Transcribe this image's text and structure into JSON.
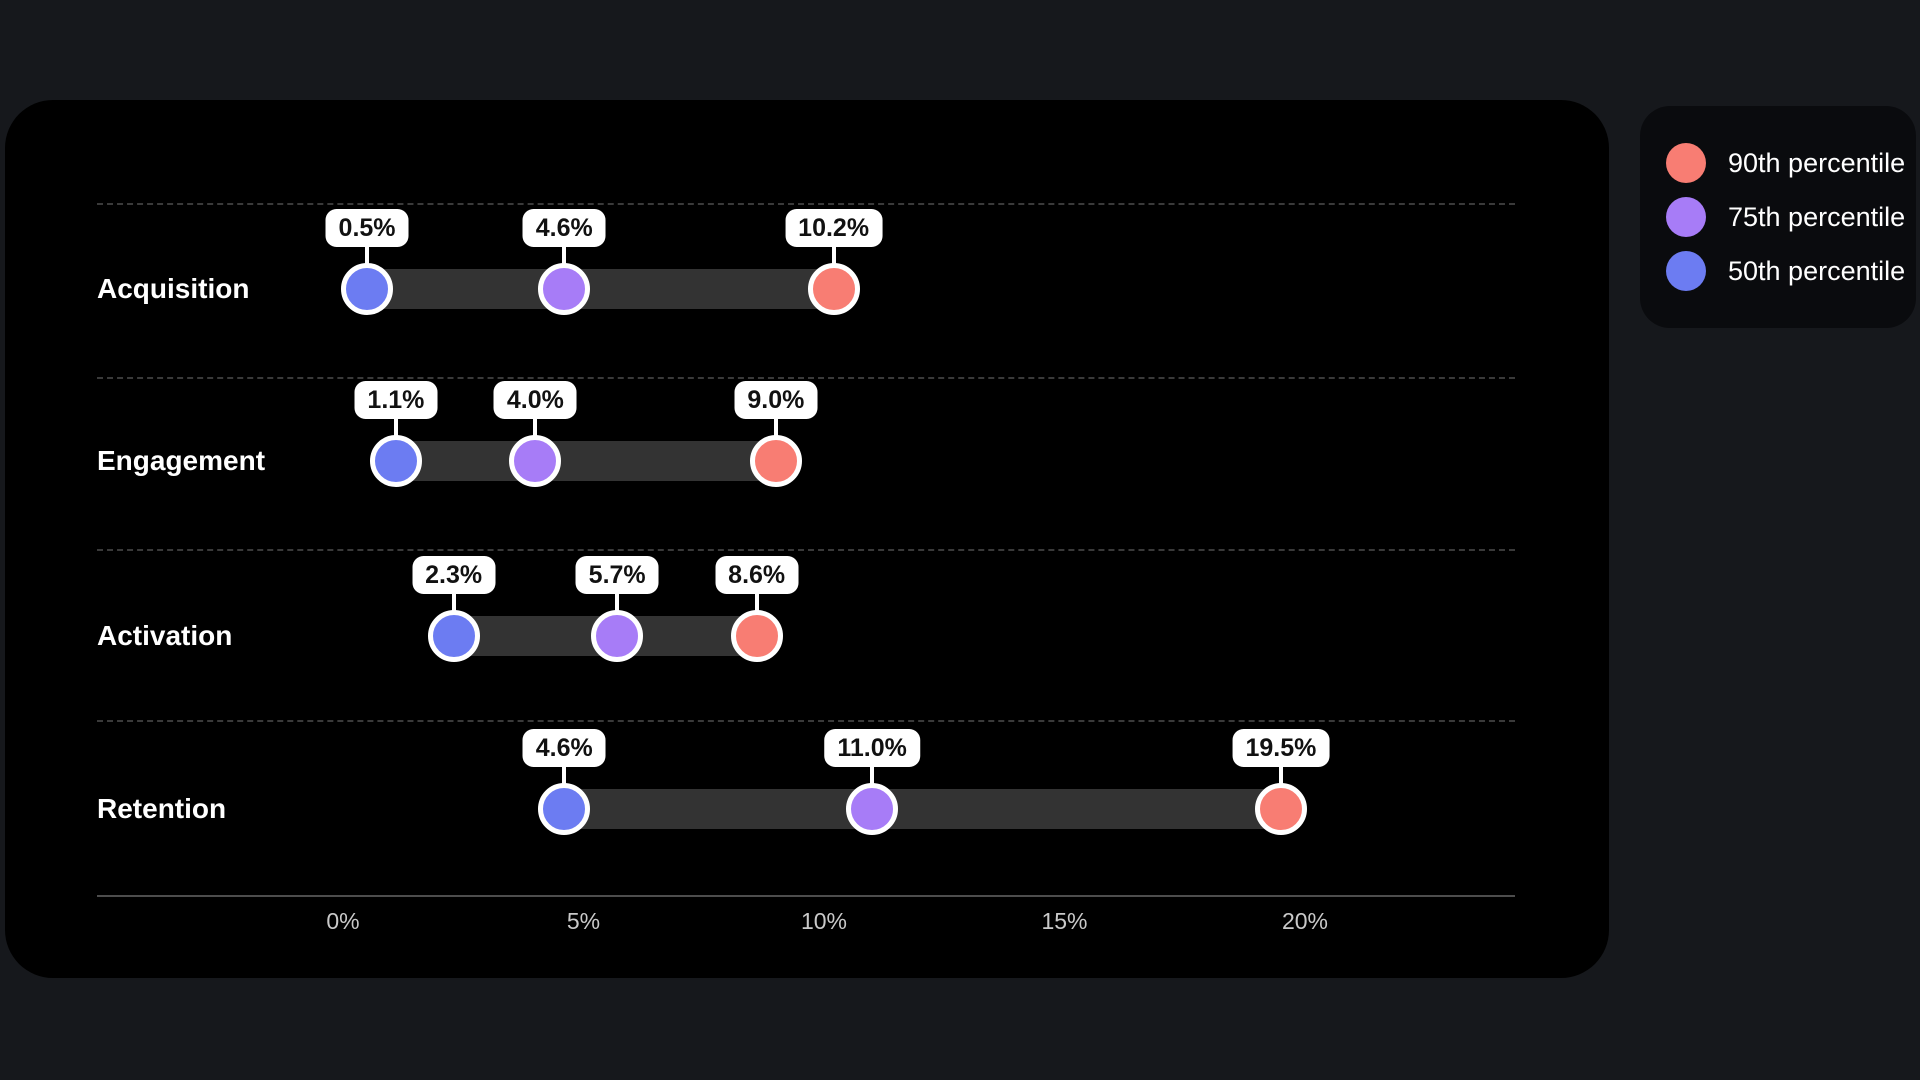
{
  "colors": {
    "page_bg": "#16181c",
    "card_bg": "#000000",
    "legend_bg": "#0a0b0e",
    "bar_track": "#333333",
    "separator": "#3a3a3a",
    "axis_line": "#4d4d4d",
    "tick_text": "#c9c9c9",
    "badge_bg": "#ffffff",
    "badge_text": "#111111",
    "blue_50th": "#6c7cf2",
    "purple_75th": "#a77cf7",
    "red_90th": "#f87d73"
  },
  "chart_data": {
    "type": "dumbbell",
    "title": "",
    "categories": [
      "Acquisition",
      "Engagement",
      "Activation",
      "Retention"
    ],
    "series": [
      {
        "name": "50th percentile",
        "color": "#6c7cf2",
        "values": [
          0.5,
          1.1,
          2.3,
          4.6
        ],
        "labels": [
          "0.5%",
          "1.1%",
          "2.3%",
          "4.6%"
        ]
      },
      {
        "name": "75th percentile",
        "color": "#a77cf7",
        "values": [
          4.6,
          4.0,
          5.7,
          11.0
        ],
        "labels": [
          "4.6%",
          "4.0%",
          "5.7%",
          "11.0%"
        ]
      },
      {
        "name": "90th percentile",
        "color": "#f87d73",
        "values": [
          10.2,
          9.0,
          8.6,
          19.5
        ],
        "labels": [
          "10.2%",
          "9.0%",
          "8.6%",
          "19.5%"
        ]
      }
    ],
    "x_axis": {
      "min": 0,
      "max": 20,
      "ticks": [
        {
          "label": "0%",
          "value": 0
        },
        {
          "label": "5%",
          "value": 5
        },
        {
          "label": "10%",
          "value": 10
        },
        {
          "label": "15%",
          "value": 15
        },
        {
          "label": "20%",
          "value": 20
        }
      ]
    },
    "grid": "dashed horizontal row separators",
    "legend_position": "top-right, outside card"
  },
  "legend": {
    "items": [
      {
        "label": "90th percentile",
        "color": "#f87d73"
      },
      {
        "label": "75th percentile",
        "color": "#a77cf7"
      },
      {
        "label": "50th percentile",
        "color": "#6c7cf2"
      }
    ]
  }
}
